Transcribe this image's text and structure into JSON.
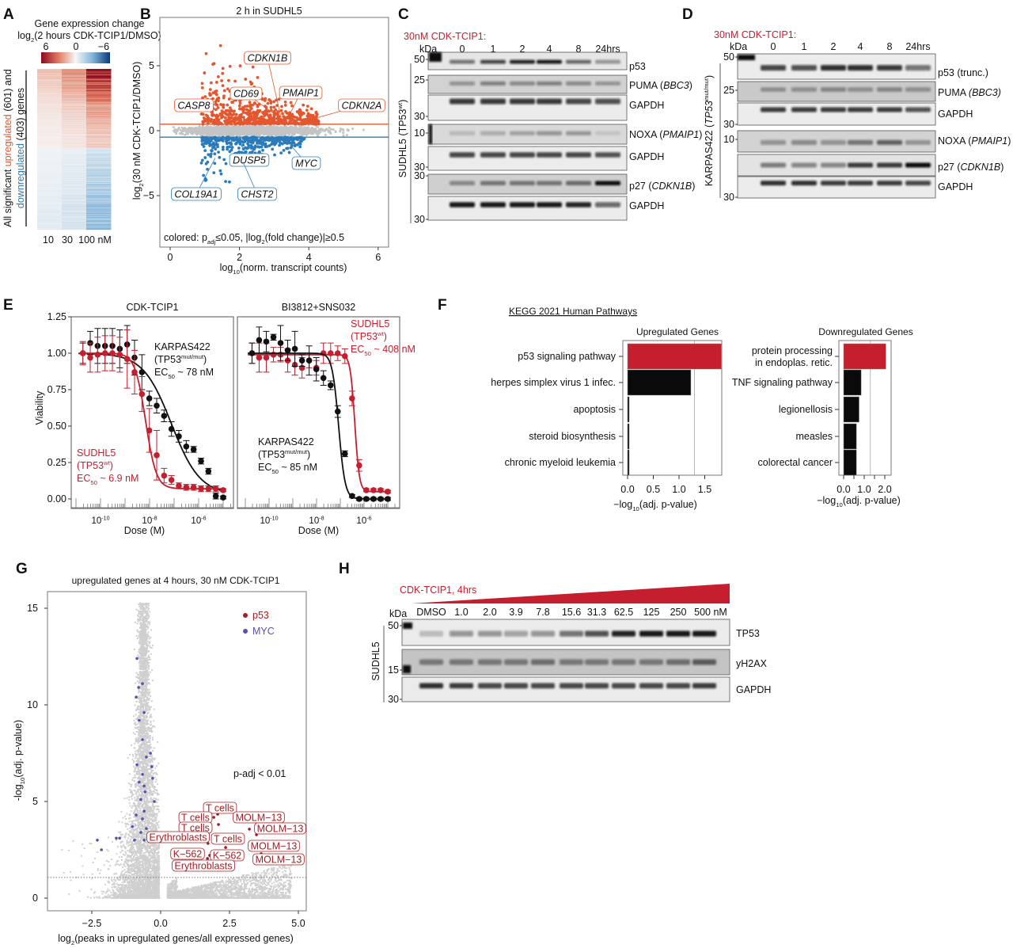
{
  "colors": {
    "up": "#e4572e",
    "down": "#2b7bba",
    "red": "#c41e2f",
    "black": "#111111",
    "grey": "#c8c8c8",
    "myc": "#5a4fb0",
    "p53": "#a51d24"
  },
  "A": {
    "letter": "A",
    "title_line1": "Gene expression change",
    "title_line2": {
      "a": "log",
      "sub": "2",
      "b": "(2 hours CDK-TCIP1/DMSO)"
    },
    "colorbar_ticks": [
      "6",
      "0",
      "−6"
    ],
    "colorbar_range": [
      6,
      -6
    ],
    "ylabel_line1": {
      "a": "All significant ",
      "up": "upregulated",
      "b": " (601) and"
    },
    "ylabel_line2": {
      "down": "downregulated",
      "b": " (403) genes"
    },
    "columns": [
      "10",
      "30",
      "100 nM"
    ],
    "chart_data": {
      "type": "heatmap",
      "columns": [
        "10",
        "30",
        "100 nM"
      ],
      "n_up": 601,
      "n_down": 403,
      "colorscale": "red-white-blue",
      "range": [
        6,
        -6
      ]
    }
  },
  "B": {
    "letter": "B",
    "title": "2 h in SUDHL5",
    "ylabel": {
      "a": "log",
      "sub": "2",
      "b": "(30 nM CDK-TCIP1/DMSO)"
    },
    "xlabel": {
      "a": "log",
      "sub": "10",
      "b": "(norm. transcript counts)"
    },
    "note": {
      "a": "colored: p",
      "sub": "adj",
      "b": "≤0.05, |log",
      "sub2": "2",
      "c": "(fold change)|≥0.5"
    },
    "xticks": [
      "0",
      "2",
      "4",
      "6"
    ],
    "yticks": [
      "5",
      "0",
      "−5"
    ],
    "chart_data": {
      "type": "scatter",
      "xlim": [
        -0.3,
        6.3
      ],
      "ylim": [
        -8.5,
        8.5
      ],
      "thresholds": [
        0.5,
        -0.5
      ],
      "labeled_genes": [
        {
          "gene": "CDKN1B",
          "x": 3.2,
          "y": 1.0,
          "dir": "up"
        },
        {
          "gene": "CD69",
          "x": 3.0,
          "y": 1.3,
          "dir": "up"
        },
        {
          "gene": "PMAIP1",
          "x": 3.4,
          "y": 1.0,
          "dir": "up"
        },
        {
          "gene": "CASP8",
          "x": 1.2,
          "y": 2.1,
          "dir": "up"
        },
        {
          "gene": "CDKN2A",
          "x": 3.7,
          "y": 0.6,
          "dir": "up"
        },
        {
          "gene": "DUSP5",
          "x": 2.0,
          "y": -0.9,
          "dir": "down"
        },
        {
          "gene": "MYC",
          "x": 3.4,
          "y": -0.9,
          "dir": "down"
        },
        {
          "gene": "COL19A1",
          "x": 1.3,
          "y": -2.1,
          "dir": "down"
        },
        {
          "gene": "CHST2",
          "x": 2.1,
          "y": -2.4,
          "dir": "down"
        }
      ]
    }
  },
  "C": {
    "letter": "C",
    "treatment": "30nM CDK-TCIP1:",
    "kda": "kDa",
    "lanes": [
      "0",
      "1",
      "2",
      "4",
      "8",
      "24hrs"
    ],
    "side_label": {
      "a": "SUDHL5 (TP53",
      "sup": "wt",
      "b": ")"
    },
    "markers": [
      "50",
      "25",
      "30",
      "10",
      "30",
      "30",
      "30"
    ],
    "blots": [
      {
        "label": "p53",
        "italic": "",
        "end": "",
        "intensity": [
          0.55,
          0.75,
          0.9,
          0.95,
          0.6,
          0.4
        ]
      },
      {
        "label": "PUMA (",
        "italic": "BBC3",
        "end": ")",
        "intensity": [
          0.35,
          0.45,
          0.4,
          0.45,
          0.4,
          0.3
        ]
      },
      {
        "label": "GAPDH",
        "italic": "",
        "end": "",
        "intensity": [
          0.8,
          0.8,
          0.8,
          0.8,
          0.75,
          0.7
        ]
      },
      {
        "label": "NOXA (",
        "italic": "PMAIP1",
        "end": ")",
        "intensity": [
          0.15,
          0.2,
          0.25,
          0.35,
          0.3,
          0.1
        ]
      },
      {
        "label": "GAPDH",
        "italic": "",
        "end": "",
        "intensity": [
          0.75,
          0.75,
          0.75,
          0.75,
          0.75,
          0.7
        ]
      },
      {
        "label": "p27 (",
        "italic": "CDKN1B",
        "end": ")",
        "intensity": [
          0.4,
          0.5,
          0.5,
          0.5,
          0.55,
          1.0
        ]
      },
      {
        "label": "GAPDH",
        "italic": "",
        "end": "",
        "intensity": [
          0.95,
          0.95,
          0.95,
          0.95,
          0.9,
          0.6
        ]
      }
    ]
  },
  "D": {
    "letter": "D",
    "treatment": "30nM CDK-TCIP1:",
    "kda": "kDa",
    "lanes": [
      "0",
      "1",
      "2",
      "4",
      "8",
      "24hrs"
    ],
    "side_label": {
      "a": "KARPAS422 (",
      "i": "TP53",
      "sup": "mut/mut",
      "b": ")"
    },
    "markers": [
      "50",
      "25",
      "30",
      "10",
      "30"
    ],
    "blots": [
      {
        "label": "p53 (trunc.)",
        "italic": "",
        "end": "",
        "intensity": [
          0.75,
          0.7,
          0.85,
          0.85,
          0.8,
          0.55
        ]
      },
      {
        "label": "PUMA ",
        "italic": "(BBC3)",
        "end": "",
        "intensity": [
          0.3,
          0.35,
          0.4,
          0.35,
          0.4,
          0.35
        ]
      },
      {
        "label": "GAPDH",
        "italic": "",
        "end": "",
        "intensity": [
          0.8,
          0.8,
          0.8,
          0.8,
          0.8,
          0.7
        ]
      },
      {
        "label": "NOXA (",
        "italic": "PMAIP1",
        "end": ")",
        "intensity": [
          0.35,
          0.4,
          0.35,
          0.5,
          0.6,
          0.3
        ]
      },
      {
        "label": "p27 (",
        "italic": "CDKN1B",
        "end": ")",
        "intensity": [
          0.5,
          0.45,
          0.45,
          0.8,
          0.8,
          1.0
        ]
      },
      {
        "label": "GAPDH",
        "italic": "",
        "end": "",
        "intensity": [
          0.85,
          0.85,
          0.8,
          0.8,
          0.8,
          0.75
        ]
      }
    ]
  },
  "E": {
    "letter": "E",
    "ylabel": "Viability",
    "xlabel": "Dose (M)",
    "yticks": [
      "1.25",
      "1.00",
      "0.75",
      "0.50",
      "0.25",
      "0.00"
    ],
    "xticks": [
      {
        "base": "10",
        "exp": "-10"
      },
      {
        "base": "10",
        "exp": "-8"
      },
      {
        "base": "10",
        "exp": "-6"
      }
    ],
    "chart_data": [
      {
        "type": "scatter",
        "title": "CDK-TCIP1",
        "xscale": "log",
        "ylim": [
          0,
          1.25
        ],
        "dose_M": [
          1.91e-11,
          3.81e-11,
          7.63e-11,
          1.53e-10,
          3.05e-10,
          6.1e-10,
          1.22e-09,
          2.44e-09,
          4.88e-09,
          9.77e-09,
          1.95e-08,
          3.91e-08,
          7.81e-08,
          1.56e-07,
          3.13e-07,
          6.25e-07,
          1.25e-06,
          2.5e-06,
          5e-06,
          1e-05
        ],
        "series": [
          {
            "name": "KARPAS422",
            "genotype": {
              "a": "(TP53",
              "sup": "mut/mut",
              "b": ")"
            },
            "ec50": {
              "a": "EC",
              "sub": "50",
              "b": " ~ 78 nM"
            },
            "color": "#111111",
            "values": [
              1.0,
              1.07,
              1.05,
              1.05,
              1.05,
              1.03,
              1.06,
              0.97,
              0.87,
              0.69,
              0.64,
              0.57,
              0.48,
              0.43,
              0.36,
              0.34,
              0.26,
              0.19,
              0.02,
              0.01
            ],
            "err": [
              0.07,
              0.08,
              0.12,
              0.12,
              0.12,
              0.13,
              0.13,
              0.12,
              0.12,
              0.05,
              0.05,
              0.04,
              0.05,
              0.04,
              0.04,
              0.02,
              0.02,
              0.02,
              0.02,
              0.01
            ],
            "fit": {
              "ec50_M": 7.8e-08,
              "hill": 0.75,
              "top": 1.0,
              "bottom": 0.03
            }
          },
          {
            "name": "SUDHL5",
            "genotype": {
              "a": "(TP53",
              "sup": "wt",
              "b": ")"
            },
            "ec50": {
              "a": "EC",
              "sub": "50",
              "b": " ~ 6.9 nM"
            },
            "color": "#c41e2f",
            "values": [
              1.0,
              0.97,
              0.99,
              1.0,
              1.0,
              0.99,
              0.96,
              0.87,
              0.72,
              0.47,
              0.3,
              0.16,
              0.13,
              0.09,
              0.08,
              0.08,
              0.07,
              0.07,
              0.07,
              0.06
            ],
            "err": [
              0.08,
              0.1,
              0.12,
              0.12,
              0.12,
              0.12,
              0.2,
              0.15,
              0.12,
              0.15,
              0.17,
              0.05,
              0.03,
              0.02,
              0.02,
              0.02,
              0.02,
              0.02,
              0.02,
              0.01
            ],
            "fit": {
              "ec50_M": 6.9e-09,
              "hill": 2.0,
              "top": 1.0,
              "bottom": 0.07
            }
          }
        ]
      },
      {
        "type": "scatter",
        "title": "BI3812+SNS032",
        "xscale": "log",
        "ylim": [
          0,
          1.25
        ],
        "dose_M": [
          1.91e-11,
          3.81e-11,
          7.63e-11,
          1.53e-10,
          3.05e-10,
          6.1e-10,
          1.22e-09,
          2.44e-09,
          4.88e-09,
          9.77e-09,
          1.95e-08,
          3.91e-08,
          7.81e-08,
          1.56e-07,
          3.13e-07,
          6.25e-07,
          1.25e-06,
          2.5e-06,
          5e-06,
          1e-05
        ],
        "series": [
          {
            "name": "SUDHL5",
            "genotype": {
              "a": "(TP53",
              "sup": "wt",
              "b": ")"
            },
            "ec50": {
              "a": "EC",
              "sub": "50",
              "b": " ~ 408 nM"
            },
            "color": "#c41e2f",
            "values": [
              1.0,
              0.97,
              0.97,
              0.99,
              0.99,
              0.95,
              0.92,
              0.9,
              0.95,
              0.9,
              1.0,
              1.0,
              1.0,
              0.98,
              0.69,
              0.23,
              0.06,
              0.06,
              0.06,
              0.05
            ],
            "err": [
              0.07,
              0.1,
              0.1,
              0.05,
              0.05,
              0.08,
              0.07,
              0.07,
              0.05,
              0.05,
              0.07,
              0.07,
              0.05,
              0.05,
              0.05,
              0.04,
              0.01,
              0.01,
              0.01,
              0.01
            ],
            "fit": {
              "ec50_M": 4.08e-07,
              "hill": 4.5,
              "top": 0.99,
              "bottom": 0.05
            }
          },
          {
            "name": "KARPAS422",
            "genotype": {
              "a": "(TP53",
              "sup": "mut/mut",
              "b": ")"
            },
            "ec50": {
              "a": "EC",
              "sub": "50",
              "b": " ~ 85 nM"
            },
            "color": "#111111",
            "values": [
              1.0,
              1.09,
              1.08,
              1.11,
              1.07,
              1.02,
              1.03,
              0.95,
              0.95,
              0.89,
              0.83,
              0.78,
              0.6,
              0.31,
              0.02,
              0.0,
              0.0,
              0.0,
              0.0,
              0.0
            ],
            "err": [
              0.07,
              0.09,
              0.07,
              0.02,
              0.12,
              0.07,
              0.12,
              0.04,
              0.1,
              0.08,
              0.05,
              0.03,
              0.04,
              0.02,
              0.01,
              0.01,
              0.01,
              0.01,
              0.01,
              0.01
            ],
            "fit": {
              "ec50_M": 8.5e-08,
              "hill": 3.2,
              "top": 1.0,
              "bottom": 0.0
            }
          }
        ]
      }
    ]
  },
  "F": {
    "letter": "F",
    "heading": "KEGG 2021 Human  Pathways",
    "xlabel": {
      "a": "−log",
      "sub": "10",
      "b": "(adj. p-value)"
    },
    "chart_data": [
      {
        "type": "bar",
        "orientation": "horizontal",
        "title": "Upregulated Genes",
        "categories": [
          "p53 signaling pathway",
          "herpes simplex virus 1 infec.",
          "apoptosis",
          "steroid biosynthesis",
          "chronic myeloid leukemia"
        ],
        "values": [
          1.82,
          1.23,
          0.03,
          0.03,
          0.03
        ],
        "highlight": [
          true,
          false,
          false,
          false,
          false
        ],
        "xticks": [
          "0.0",
          "0.5",
          "1.0",
          "1.5"
        ],
        "xlim": [
          0,
          1.9
        ],
        "threshold": 1.3
      },
      {
        "type": "bar",
        "orientation": "horizontal",
        "title": "Downregulated Genes",
        "categories": [
          "protein processing\nin endoplas. retic.",
          "TNF signaling pathway",
          "legionellosis",
          "measles",
          "colorectal cancer"
        ],
        "values": [
          2.05,
          0.85,
          0.75,
          0.62,
          0.62
        ],
        "highlight": [
          true,
          false,
          false,
          false,
          false
        ],
        "xticks": [
          "0.0",
          "1.0",
          "2.0"
        ],
        "xlim": [
          0,
          2.3
        ],
        "threshold": 1.3
      }
    ]
  },
  "G": {
    "letter": "G",
    "title": "upregulated genes at 4 hours, 30 nM CDK-TCIP1",
    "ylabel": {
      "a": "-log",
      "sub": "10",
      "b": "(adj. p-value)"
    },
    "xlabel": {
      "a": "log",
      "sub": "2",
      "b": "(peaks in upregulated genes/all expressed genes)"
    },
    "xticks": [
      "−2.5",
      "0.0",
      "2.5",
      "5.0"
    ],
    "yticks": [
      "0",
      "5",
      "10",
      "15"
    ],
    "legend": [
      "p53",
      "MYC"
    ],
    "annotation": "p-adj < 0.01",
    "chart_data": {
      "type": "scatter",
      "xlim": [
        -4.1,
        5.3
      ],
      "ylim": [
        -0.6,
        15.9
      ],
      "threshold_y": 1.07,
      "legend": "top-right",
      "p53_points": [
        {
          "x": 2.07,
          "y": 4.34,
          "label": "T cells"
        },
        {
          "x": 1.93,
          "y": 4.18,
          "label": "T cells"
        },
        {
          "x": 3.39,
          "y": 4.3,
          "label": "MOLM−13"
        },
        {
          "x": 2.1,
          "y": 3.81,
          "label": "T cells"
        },
        {
          "x": 3.48,
          "y": 3.28,
          "label": "MOLM−13"
        },
        {
          "x": 1.72,
          "y": 2.83,
          "label": "Erythroblasts"
        },
        {
          "x": 2.33,
          "y": 3.24,
          "label": "T cells"
        },
        {
          "x": 3.22,
          "y": 3.57,
          "label": "MOLM−13"
        },
        {
          "x": 1.78,
          "y": 2.21,
          "label": "K−562"
        },
        {
          "x": 2.36,
          "y": 2.62,
          "label": "K−562"
        },
        {
          "x": 3.65,
          "y": 2.3,
          "label": "MOLM−13"
        },
        {
          "x": 1.7,
          "y": 2.05,
          "label": "Erythroblasts"
        }
      ],
      "myc_points": [
        [
          -0.86,
          12.4
        ],
        [
          -0.66,
          11.1
        ],
        [
          -0.8,
          10.9
        ],
        [
          -0.89,
          10.4
        ],
        [
          -0.6,
          9.6
        ],
        [
          -0.78,
          9.2
        ],
        [
          -0.66,
          8.2
        ],
        [
          -0.37,
          7.5
        ],
        [
          -0.52,
          7.3
        ],
        [
          -0.32,
          6.8
        ],
        [
          -0.86,
          6.9
        ],
        [
          -0.66,
          6.4
        ],
        [
          -0.29,
          6.2
        ],
        [
          -0.78,
          6.0
        ],
        [
          -0.6,
          5.8
        ],
        [
          -0.57,
          5.5
        ],
        [
          -0.72,
          5.1
        ],
        [
          -0.23,
          5.0
        ],
        [
          -0.6,
          4.5
        ],
        [
          -0.89,
          4.3
        ],
        [
          -0.66,
          4.1
        ],
        [
          -1.03,
          3.7
        ],
        [
          -0.52,
          3.6
        ],
        [
          -0.72,
          3.4
        ],
        [
          -0.95,
          3.0
        ],
        [
          -0.6,
          3.0
        ],
        [
          -1.61,
          3.1
        ],
        [
          -1.49,
          3.1
        ],
        [
          -2.3,
          3.0
        ],
        [
          -2.15,
          2.5
        ]
      ]
    }
  },
  "H": {
    "letter": "H",
    "treatment": "CDK-TCIP1, 4hrs",
    "kda": "kDa",
    "lanes": [
      "DMSO",
      "1.0",
      "2.0",
      "3.9",
      "7.8",
      "15.6",
      "31.3",
      "62.5",
      "125",
      "250",
      "500 nM"
    ],
    "side_label": "SUDHL5",
    "markers": [
      "50",
      "15",
      "30"
    ],
    "blots": [
      {
        "label": "TP53",
        "intensity": [
          0.2,
          0.4,
          0.4,
          0.35,
          0.4,
          0.55,
          0.7,
          0.9,
          0.95,
          0.95,
          0.95
        ]
      },
      {
        "label": "yH2AX",
        "intensity": [
          0.45,
          0.45,
          0.45,
          0.45,
          0.5,
          0.45,
          0.45,
          0.45,
          0.45,
          0.5,
          0.6
        ]
      },
      {
        "label": "GAPDH",
        "intensity": [
          0.85,
          0.8,
          0.75,
          0.75,
          0.75,
          0.75,
          0.75,
          0.75,
          0.75,
          0.75,
          0.8
        ]
      }
    ]
  }
}
